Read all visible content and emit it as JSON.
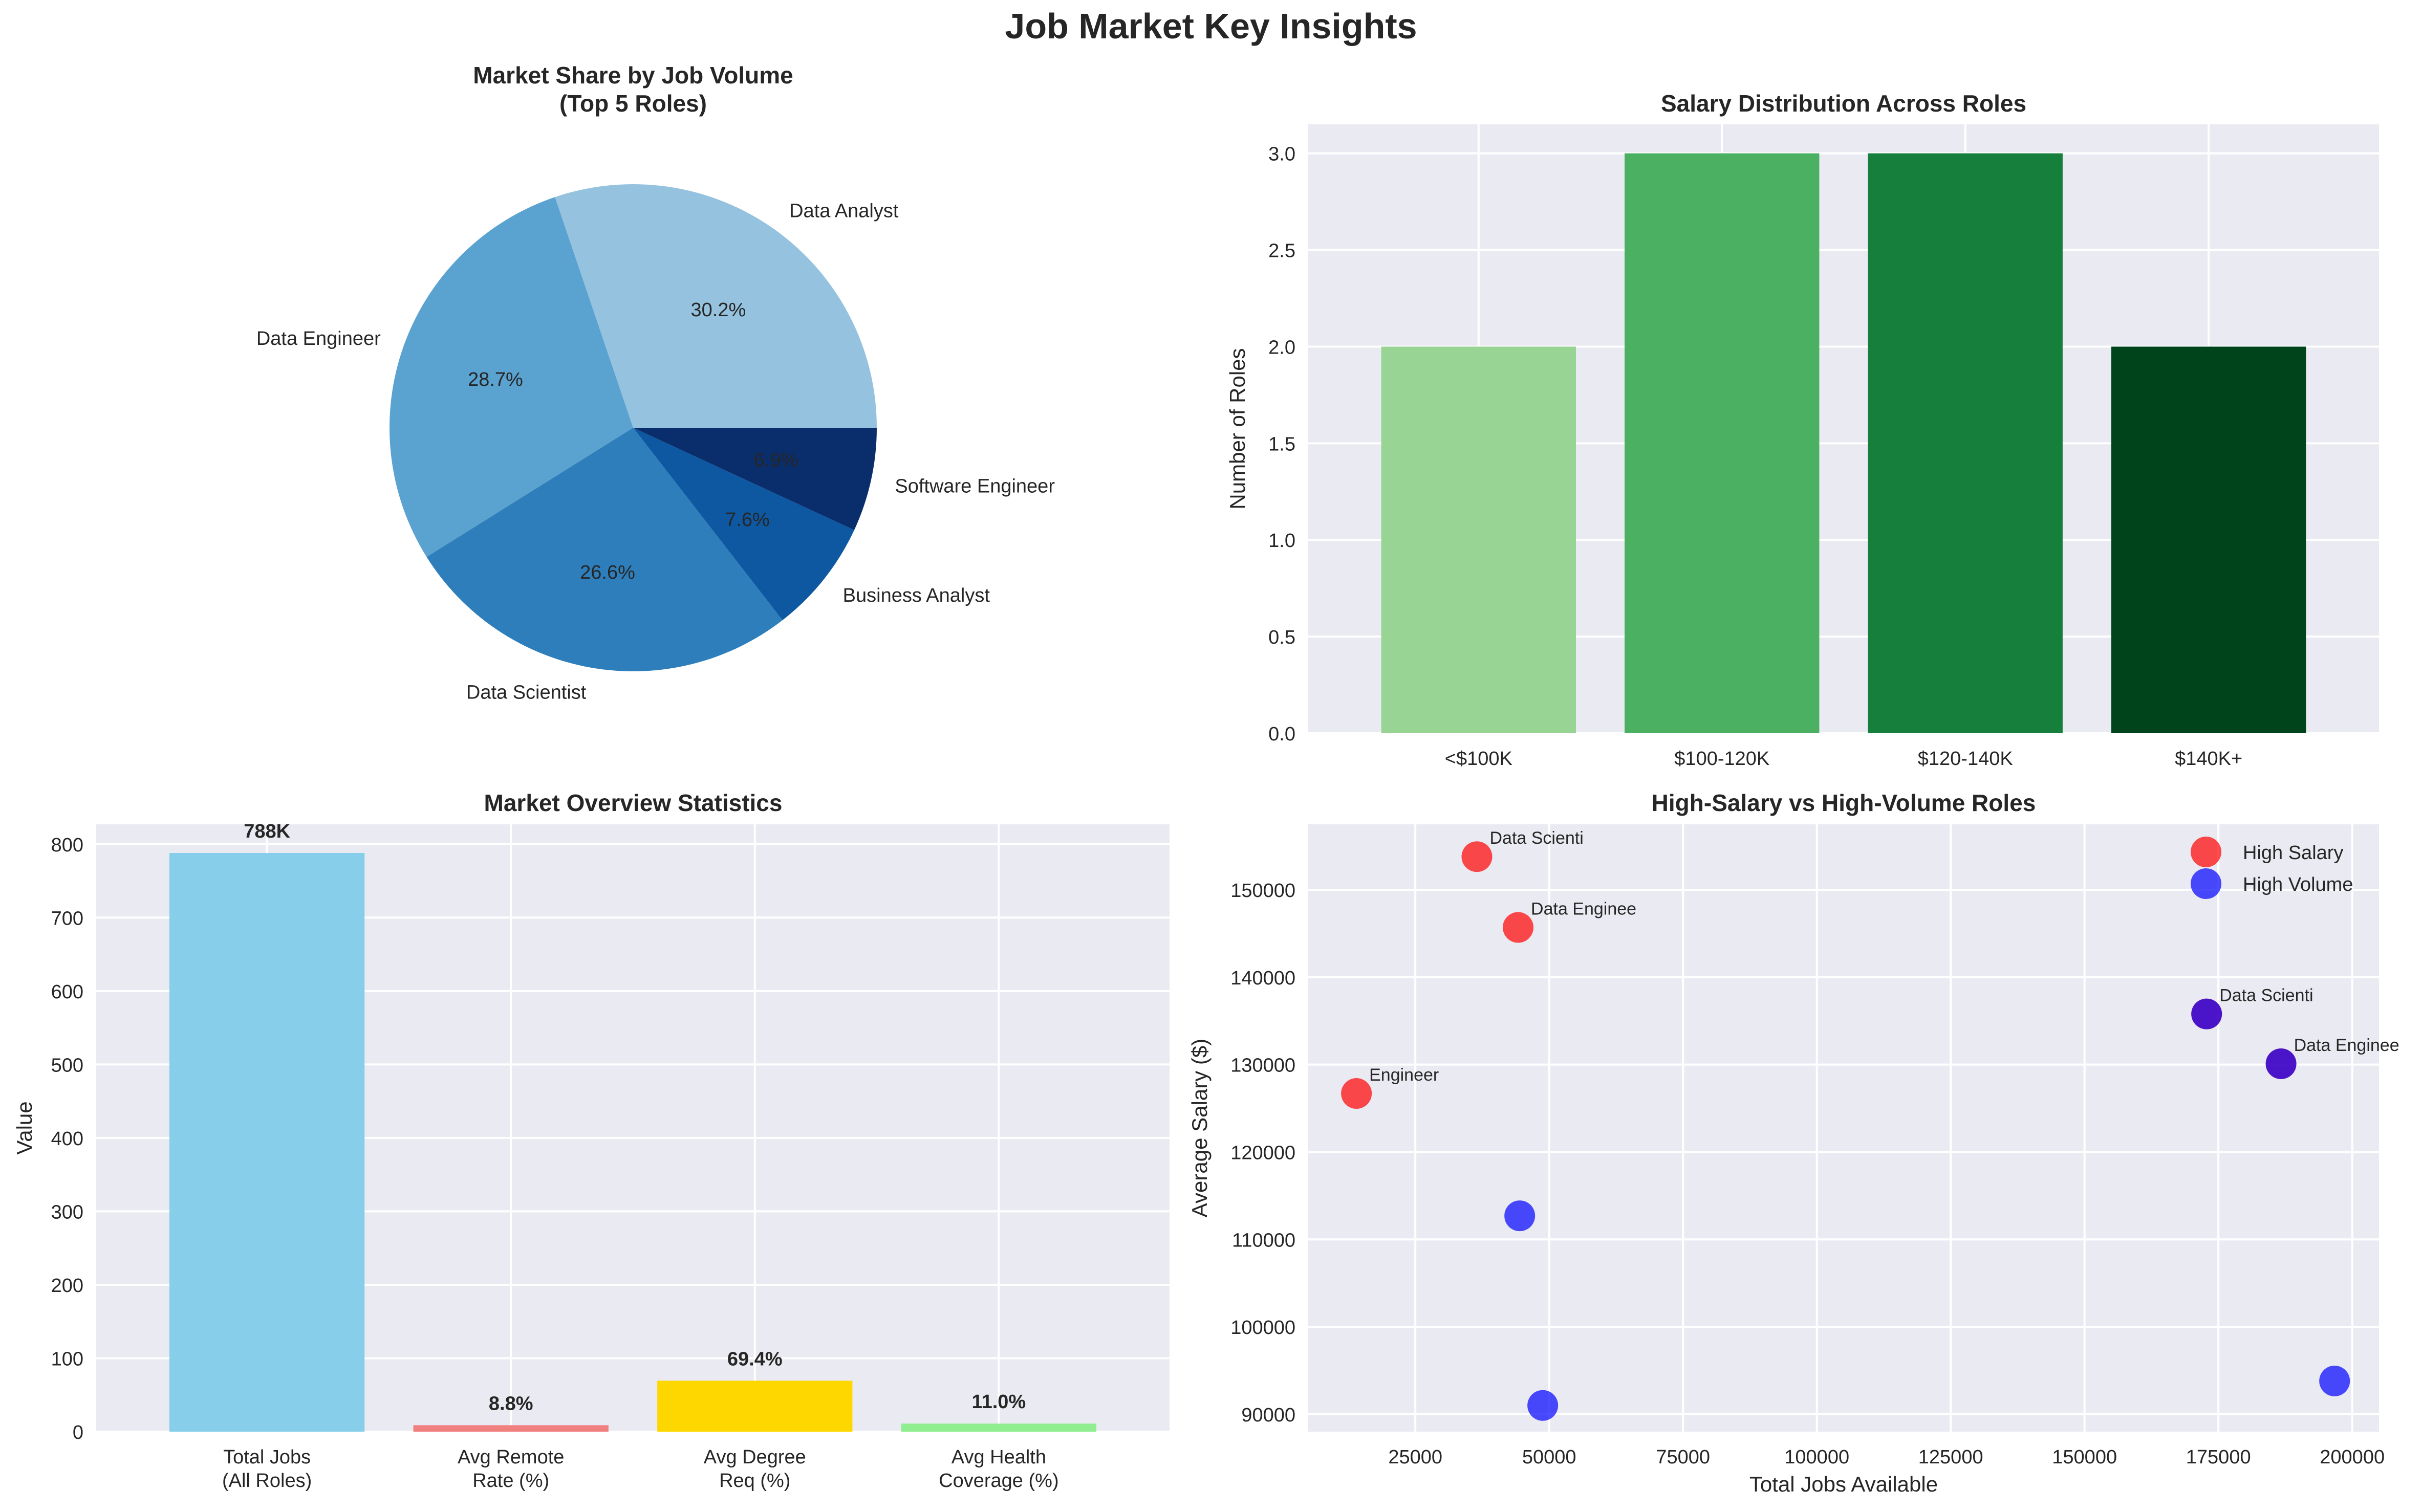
{
  "figure": {
    "title": "Job Market Key Insights"
  },
  "chart_data": [
    {
      "type": "pie",
      "title": "Market Share by Job Volume\n(Top 5 Roles)",
      "labels": [
        "Data Analyst",
        "Data Engineer",
        "Data Scientist",
        "Business Analyst",
        "Software Engineer"
      ],
      "values": [
        30.2,
        28.7,
        26.6,
        7.6,
        6.9
      ],
      "autopct": [
        "30.2%",
        "28.7%",
        "26.6%",
        "7.6%",
        "6.9%"
      ],
      "colors": [
        "#95c2df",
        "#5aa2d0",
        "#2e7ebb",
        "#0e58a2",
        "#0a2e6b"
      ]
    },
    {
      "type": "bar",
      "title": "Salary Distribution Across Roles",
      "categories": [
        "<$100K",
        "$100-120K",
        "$120-140K",
        "$140K+"
      ],
      "values": [
        2,
        3,
        3,
        2
      ],
      "xlabel": "",
      "ylabel": "Number of Roles",
      "ylim": [
        0,
        3.15
      ],
      "yticks": [
        "0.0",
        "0.5",
        "1.0",
        "1.5",
        "2.0",
        "2.5",
        "3.0"
      ],
      "colors": [
        "#98d594",
        "#4bb062",
        "#157f3b",
        "#00441b"
      ],
      "grid": true
    },
    {
      "type": "bar",
      "title": "Market Overview Statistics",
      "categories": [
        "Total Jobs\n(All Roles)",
        "Avg Remote\nRate (%)",
        "Avg Degree\nReq (%)",
        "Avg Health\nCoverage (%)"
      ],
      "values": [
        788,
        8.8,
        69.4,
        11.0
      ],
      "value_labels": [
        "788K",
        "8.8%",
        "69.4%",
        "11.0%"
      ],
      "xlabel": "",
      "ylabel": "Value",
      "ylim": [
        0,
        827
      ],
      "yticks": [
        "0",
        "100",
        "200",
        "300",
        "400",
        "500",
        "600",
        "700",
        "800"
      ],
      "colors": [
        "#87ceeb",
        "#f08080",
        "#ffd700",
        "#90ee90"
      ],
      "grid": true
    },
    {
      "type": "scatter",
      "title": "High-Salary vs High-Volume Roles",
      "xlabel": "Total Jobs Available",
      "ylabel": "Average Salary ($)",
      "xlim": [
        5000,
        205000
      ],
      "ylim": [
        88000,
        157500
      ],
      "xticks": [
        "25000",
        "50000",
        "75000",
        "100000",
        "125000",
        "150000",
        "175000",
        "200000"
      ],
      "yticks": [
        "90000",
        "100000",
        "110000",
        "120000",
        "130000",
        "140000",
        "150000"
      ],
      "legend_position": "top-right",
      "grid": true,
      "series": [
        {
          "name": "High Salary",
          "color": "#ff0000",
          "points": [
            {
              "x": 36500,
              "y": 153800,
              "label": "Data Scienti"
            },
            {
              "x": 44200,
              "y": 145700,
              "label": "Data Enginee"
            },
            {
              "x": 14000,
              "y": 126700,
              "label": "Engineer"
            },
            {
              "x": 172800,
              "y": 135800,
              "label": "Data Scienti"
            },
            {
              "x": 186700,
              "y": 130100,
              "label": "Data Enginee"
            }
          ]
        },
        {
          "name": "High Volume",
          "color": "#0000ff",
          "points": [
            {
              "x": 172800,
              "y": 135800
            },
            {
              "x": 186700,
              "y": 130100
            },
            {
              "x": 44500,
              "y": 112700
            },
            {
              "x": 48800,
              "y": 91000
            },
            {
              "x": 196700,
              "y": 93800
            }
          ]
        }
      ]
    }
  ]
}
